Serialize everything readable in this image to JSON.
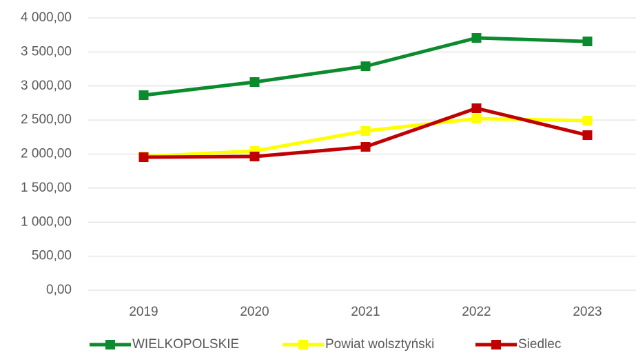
{
  "chart_data": {
    "type": "line",
    "categories": [
      "2019",
      "2020",
      "2021",
      "2022",
      "2023"
    ],
    "series": [
      {
        "name": "WIELKOPOLSKIE",
        "color": "#0b8a2e",
        "values": [
          2865,
          3058,
          3290,
          3706,
          3655
        ]
      },
      {
        "name": "Powiat wolsztyński",
        "color": "#ffff00",
        "values": [
          1964,
          2045,
          2339,
          2521,
          2491
        ]
      },
      {
        "name": "Siedlec",
        "color": "#c00000",
        "values": [
          1954,
          1964,
          2106,
          2673,
          2278
        ]
      }
    ],
    "ylim": [
      0,
      4000
    ],
    "yticks": [
      {
        "value": 0,
        "label": "0,00"
      },
      {
        "value": 500,
        "label": "500,00"
      },
      {
        "value": 1000,
        "label": "1 000,00"
      },
      {
        "value": 1500,
        "label": "1 500,00"
      },
      {
        "value": 2000,
        "label": "2 000,00"
      },
      {
        "value": 2500,
        "label": "2 500,00"
      },
      {
        "value": 3000,
        "label": "3 000,00"
      },
      {
        "value": 3500,
        "label": "3 500,00"
      },
      {
        "value": 4000,
        "label": "4 000,00"
      }
    ],
    "grid": true,
    "legend": "bottom"
  }
}
